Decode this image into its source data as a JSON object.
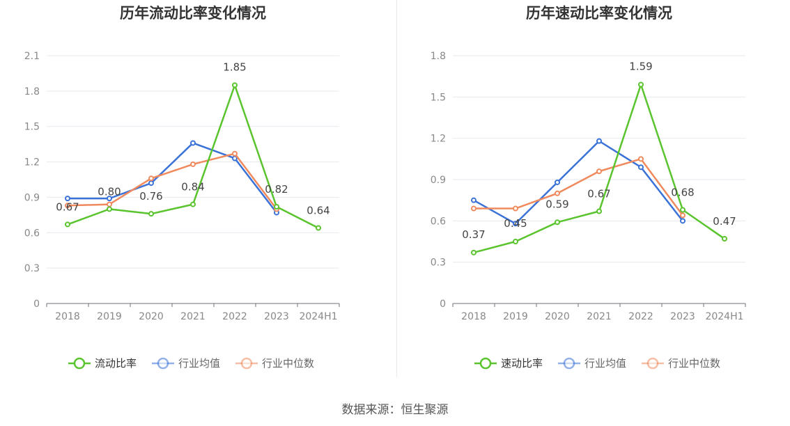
{
  "footer": {
    "source": "数据来源：恒生聚源"
  },
  "chart_data": [
    {
      "type": "line",
      "title": "历年流动比率变化情况",
      "categories": [
        "2018",
        "2019",
        "2020",
        "2021",
        "2022",
        "2023",
        "2024H1"
      ],
      "ylim": [
        0,
        2.1
      ],
      "yticks": [
        "0",
        "0.3",
        "0.6",
        "0.9",
        "1.2",
        "1.5",
        "1.8",
        "2.1"
      ],
      "grid": true,
      "legend_position": "bottom",
      "series": [
        {
          "name": "流动比率",
          "color": "#5ac42e",
          "values": [
            0.67,
            0.8,
            0.76,
            0.84,
            1.85,
            0.82,
            0.64
          ],
          "labels": [
            "0.67",
            "0.80",
            "0.76",
            "0.84",
            "1.85",
            "0.82",
            "0.64"
          ]
        },
        {
          "name": "行业均值",
          "color": "#3a72d8",
          "values": [
            0.89,
            0.89,
            1.02,
            1.36,
            1.23,
            0.77,
            null
          ]
        },
        {
          "name": "行业中位数",
          "color": "#f08a5d",
          "values": [
            0.83,
            0.84,
            1.06,
            1.18,
            1.27,
            0.8,
            null
          ]
        }
      ]
    },
    {
      "type": "line",
      "title": "历年速动比率变化情况",
      "categories": [
        "2018",
        "2019",
        "2020",
        "2021",
        "2022",
        "2023",
        "2024H1"
      ],
      "ylim": [
        0,
        1.8
      ],
      "yticks": [
        "0",
        "0.3",
        "0.6",
        "0.9",
        "1.2",
        "1.5",
        "1.8"
      ],
      "grid": true,
      "legend_position": "bottom",
      "series": [
        {
          "name": "速动比率",
          "color": "#5ac42e",
          "values": [
            0.37,
            0.45,
            0.59,
            0.67,
            1.59,
            0.68,
            0.47
          ],
          "labels": [
            "0.37",
            "0.45",
            "0.59",
            "0.67",
            "1.59",
            "0.68",
            "0.47"
          ]
        },
        {
          "name": "行业均值",
          "color": "#3a72d8",
          "values": [
            0.75,
            0.58,
            0.88,
            1.18,
            0.99,
            0.6,
            null
          ]
        },
        {
          "name": "行业中位数",
          "color": "#f08a5d",
          "values": [
            0.69,
            0.69,
            0.8,
            0.96,
            1.05,
            0.64,
            null
          ]
        }
      ]
    }
  ]
}
